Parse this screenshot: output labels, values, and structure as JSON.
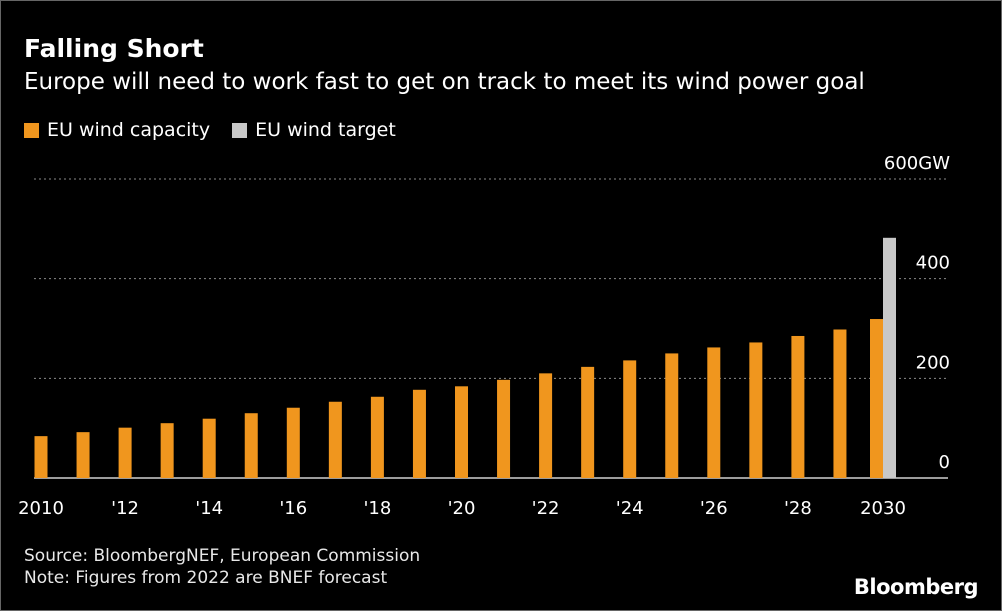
{
  "colors": {
    "background": "#000000",
    "capacity": "#F0961E",
    "target": "#C8C8C8",
    "gridline": "#8A8A8A",
    "text": "#FFFFFF"
  },
  "header": {
    "title": "Falling Short",
    "subtitle": "Europe will need to work fast to get on track to meet its wind power goal"
  },
  "footer": {
    "source": "Source: BloombergNEF, European Commission",
    "note": "Note: Figures from 2022 are BNEF forecast",
    "brand": "Bloomberg"
  },
  "chart_data": {
    "type": "bar",
    "title": "Falling Short",
    "subtitle": "Europe will need to work fast to get on track to meet its wind power goal",
    "categories": [
      "2010",
      "2011",
      "2012",
      "2013",
      "2014",
      "2015",
      "2016",
      "2017",
      "2018",
      "2019",
      "2020",
      "2021",
      "2022",
      "2023",
      "2024",
      "2025",
      "2026",
      "2027",
      "2028",
      "2029",
      "2030"
    ],
    "series": [
      {
        "name": "EU wind capacity",
        "color": "#F0961E",
        "values": [
          84,
          92,
          101,
          110,
          119,
          130,
          141,
          153,
          163,
          177,
          184,
          197,
          210,
          223,
          236,
          250,
          262,
          272,
          285,
          298,
          319
        ]
      },
      {
        "name": "EU wind target",
        "color": "#C8C8C8",
        "values": [
          null,
          null,
          null,
          null,
          null,
          null,
          null,
          null,
          null,
          null,
          null,
          null,
          null,
          null,
          null,
          null,
          null,
          null,
          null,
          null,
          482
        ]
      }
    ],
    "x_tick_labels": [
      "2010",
      "'12",
      "'14",
      "'16",
      "'18",
      "'20",
      "'22",
      "'24",
      "'26",
      "'28",
      "2030"
    ],
    "y_ticks": [
      0,
      200,
      400,
      600
    ],
    "y_tick_labels": [
      "0",
      "200",
      "400",
      "600GW"
    ],
    "ylim": [
      0,
      600
    ],
    "xlabel": "",
    "ylabel": "",
    "legend_position": "top-left",
    "grid": true
  }
}
